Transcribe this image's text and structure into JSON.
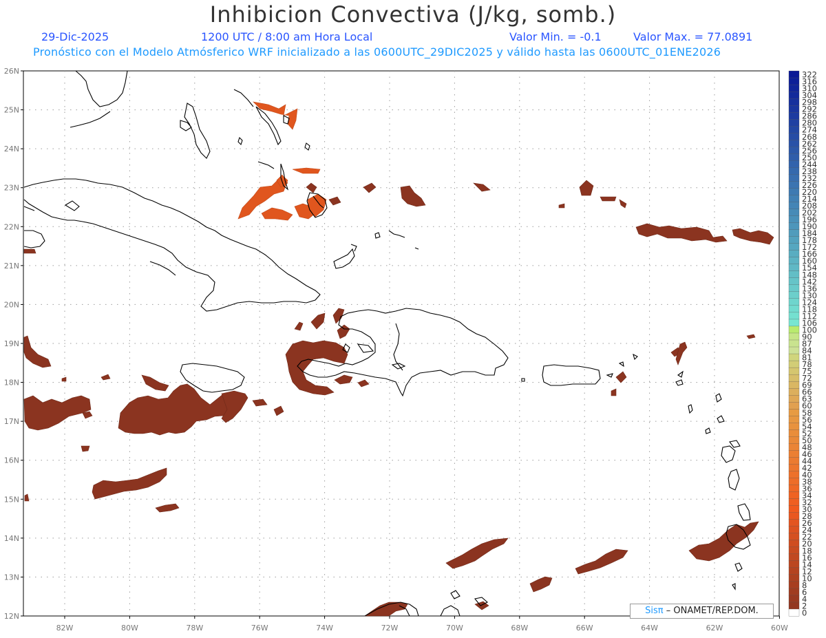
{
  "header": {
    "title": "Inhibicion Convectiva (J/kg, somb.)",
    "date": "29-Dic-2025",
    "time": "1200 UTC / 8:00 am Hora Local",
    "min_label": "Valor Min. = -0.1",
    "max_label": "Valor Max. = 77.0891",
    "subtitle": "Pronóstico con el Modelo Atmósferico WRF inicializado a las 0600UTC_29DIC2025 y válido hasta las  0600UTC_01ENE2026"
  },
  "map": {
    "lat_labels": [
      "26N",
      "25N",
      "24N",
      "23N",
      "22N",
      "21N",
      "20N",
      "19N",
      "18N",
      "17N",
      "16N",
      "15N",
      "14N",
      "13N",
      "12N"
    ],
    "lon_labels": [
      "82W",
      "80W",
      "78W",
      "76W",
      "74W",
      "72W",
      "70W",
      "68W",
      "66W",
      "64W",
      "62W",
      "60W"
    ],
    "field_color": "#8b3420",
    "field_color_light": "#e0561e",
    "coast_color": "#000000",
    "grid_color": "#9a9a9a"
  },
  "colorbar": {
    "labels": [
      "322",
      "316",
      "310",
      "304",
      "298",
      "292",
      "286",
      "280",
      "274",
      "268",
      "262",
      "256",
      "250",
      "244",
      "238",
      "232",
      "226",
      "220",
      "214",
      "208",
      "202",
      "196",
      "190",
      "184",
      "178",
      "172",
      "166",
      "160",
      "154",
      "148",
      "142",
      "136",
      "130",
      "124",
      "118",
      "112",
      "106",
      "100",
      "90",
      "87",
      "84",
      "81",
      "78",
      "75",
      "72",
      "69",
      "66",
      "63",
      "60",
      "58",
      "56",
      "54",
      "52",
      "50",
      "48",
      "46",
      "44",
      "42",
      "40",
      "38",
      "36",
      "34",
      "32",
      "30",
      "28",
      "26",
      "24",
      "22",
      "20",
      "18",
      "16",
      "14",
      "12",
      "10",
      "8",
      "6",
      "4",
      "2",
      "0"
    ]
  },
  "credit": {
    "sis": "Sisπ",
    "org": "– ONAMET/REP.DOM."
  }
}
